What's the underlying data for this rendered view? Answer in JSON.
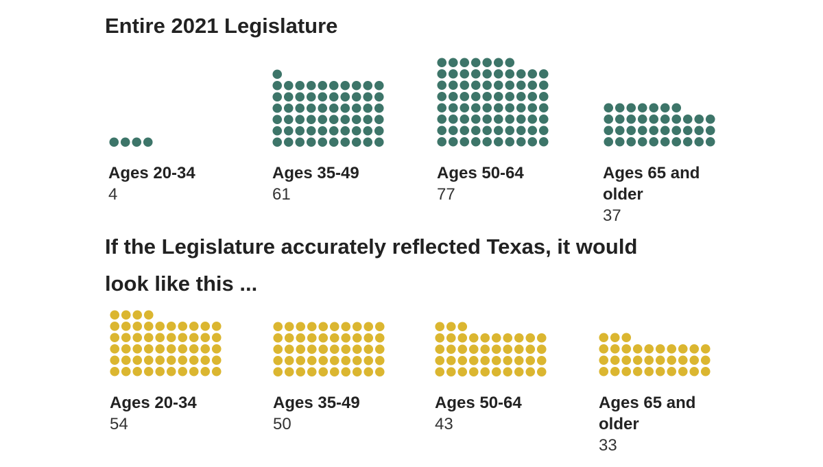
{
  "colors": {
    "actual": "#3d7569",
    "reflected": "#dbb630"
  },
  "chart_data": [
    {
      "type": "dot-grid",
      "title": "Entire 2021 Legislature",
      "categories": [
        "Ages 20-34",
        "Ages 35-49",
        "Ages 50-64",
        "Ages 65 and older"
      ],
      "values": [
        4,
        61,
        77,
        37
      ],
      "value_labels": [
        "4",
        "61",
        "77",
        "37"
      ]
    },
    {
      "type": "dot-grid",
      "title": "If the Legislature accurately reflected Texas, it would look like this ...",
      "categories": [
        "Ages 20-34",
        "Ages 35-49",
        "Ages 50-64",
        "Ages 65 and older"
      ],
      "values": [
        54,
        50,
        43,
        33
      ],
      "value_labels": [
        "54",
        "50",
        "43",
        "33"
      ]
    }
  ]
}
